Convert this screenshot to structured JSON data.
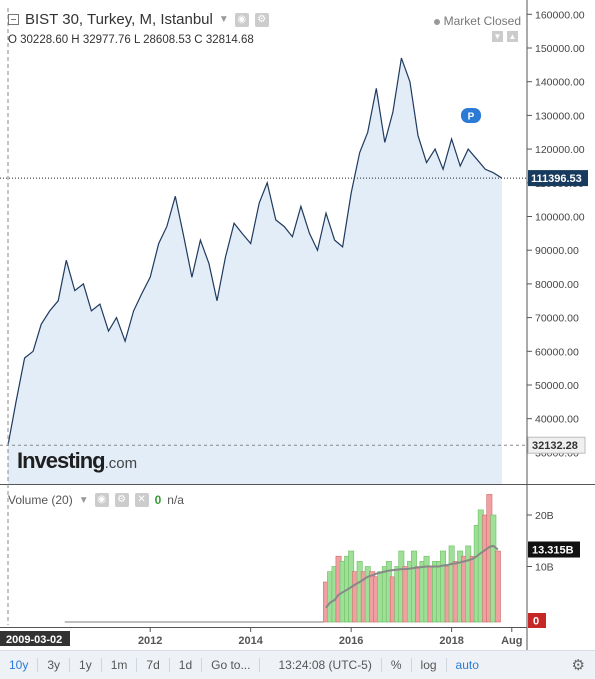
{
  "header": {
    "title": "BIST 30, Turkey, M, Istanbul",
    "market_status": "Market Closed",
    "ohlc": {
      "o": "30228.60",
      "h": "32977.76",
      "l": "28608.53",
      "c": "32814.68"
    }
  },
  "volume_header": {
    "label": "Volume (20)",
    "value": "0",
    "value2": "n/a"
  },
  "logo": {
    "name": "Investing",
    "suffix": ".com"
  },
  "toolbar": {
    "ranges": [
      "10y",
      "3y",
      "1y",
      "1m",
      "7d",
      "1d",
      "Go to..."
    ],
    "active_range": "10y",
    "time": "13:24:08 (UTC-5)",
    "percent": "%",
    "log": "log",
    "auto": "auto"
  },
  "colors": {
    "line": "#1e3a5f",
    "area": "#e3edf8",
    "up": "#9fdf98",
    "down": "#f0a0a0",
    "ma": "#888888",
    "price_tag": "#173a5e",
    "accent": "#2a7ad6"
  },
  "chart_data": [
    {
      "type": "area",
      "title": "BIST 30, Turkey, M, Istanbul",
      "x_ticks": [
        "2009-03-02",
        "2012",
        "2014",
        "2016",
        "2018",
        "Aug"
      ],
      "y_ticks": [
        "30000.00",
        "40000.00",
        "50000.00",
        "60000.00",
        "70000.00",
        "80000.00",
        "90000.00",
        "100000.00",
        "110000.00",
        "120000.00",
        "130000.00",
        "140000.00",
        "150000.00",
        "160000.00"
      ],
      "ylim": [
        30000,
        162000
      ],
      "current_price": "111396.53",
      "min_marker": "32132.28",
      "marker_label": "P",
      "grid": false,
      "x": [
        2009.17,
        2009.33,
        2009.5,
        2009.67,
        2009.83,
        2010.0,
        2010.17,
        2010.33,
        2010.5,
        2010.67,
        2010.83,
        2011.0,
        2011.17,
        2011.33,
        2011.5,
        2011.67,
        2011.83,
        2012.0,
        2012.17,
        2012.33,
        2012.5,
        2012.67,
        2012.83,
        2013.0,
        2013.17,
        2013.33,
        2013.5,
        2013.67,
        2013.83,
        2014.0,
        2014.17,
        2014.33,
        2014.5,
        2014.67,
        2014.83,
        2015.0,
        2015.17,
        2015.33,
        2015.5,
        2015.67,
        2015.83,
        2016.0,
        2016.17,
        2016.33,
        2016.5,
        2016.67,
        2016.83,
        2017.0,
        2017.17,
        2017.33,
        2017.5,
        2017.67,
        2017.83,
        2018.0,
        2018.17,
        2018.33,
        2018.5,
        2018.67,
        2018.83,
        2019.0
      ],
      "y": [
        32132,
        45000,
        58000,
        60000,
        68000,
        72000,
        75000,
        87000,
        78000,
        80000,
        72000,
        74000,
        66000,
        70000,
        63000,
        72000,
        77000,
        82000,
        92000,
        97000,
        106000,
        94000,
        82000,
        93000,
        86000,
        75000,
        88000,
        98000,
        95000,
        92000,
        104000,
        110000,
        99000,
        97000,
        94000,
        103000,
        95000,
        90000,
        101000,
        93000,
        91000,
        107000,
        119000,
        125000,
        138000,
        122000,
        131000,
        147000,
        140000,
        124000,
        116000,
        120000,
        114000,
        123000,
        115000,
        120000,
        117000,
        114000,
        113000,
        111397
      ]
    },
    {
      "type": "bar",
      "title": "Volume (20)",
      "y_ticks": [
        "10B",
        "20B"
      ],
      "ylim": [
        0,
        25
      ],
      "current_value": "13.315B",
      "min_label": "0",
      "x": [
        2015.5,
        2015.58,
        2015.67,
        2015.75,
        2015.83,
        2015.92,
        2016.0,
        2016.08,
        2016.17,
        2016.25,
        2016.33,
        2016.42,
        2016.5,
        2016.58,
        2016.67,
        2016.75,
        2016.83,
        2016.92,
        2017.0,
        2017.08,
        2017.17,
        2017.25,
        2017.33,
        2017.42,
        2017.5,
        2017.58,
        2017.67,
        2017.75,
        2017.83,
        2017.92,
        2018.0,
        2018.08,
        2018.17,
        2018.25,
        2018.33,
        2018.42,
        2018.5,
        2018.58,
        2018.67,
        2018.75,
        2018.83,
        2018.92
      ],
      "values": [
        7,
        9,
        10,
        12,
        11,
        12,
        13,
        9,
        11,
        9,
        10,
        9,
        8,
        9,
        10,
        11,
        8,
        10,
        13,
        10,
        11,
        13,
        10,
        11,
        12,
        10,
        11,
        11,
        13,
        10,
        14,
        11,
        13,
        12,
        14,
        12,
        18,
        21,
        20,
        24,
        20,
        13
      ],
      "up": [
        false,
        true,
        true,
        false,
        true,
        true,
        true,
        false,
        true,
        false,
        true,
        false,
        false,
        true,
        true,
        true,
        false,
        true,
        true,
        false,
        true,
        true,
        false,
        true,
        true,
        false,
        true,
        true,
        true,
        false,
        true,
        false,
        true,
        false,
        true,
        false,
        true,
        true,
        false,
        false,
        true,
        false
      ],
      "ma": [
        2,
        3,
        3.5,
        4.5,
        5,
        5.5,
        6,
        6.5,
        7,
        7.5,
        8,
        8.3,
        8.6,
        8.8,
        9,
        9.2,
        9.3,
        9.4,
        9.5,
        9.5,
        9.6,
        9.7,
        9.8,
        9.9,
        10,
        10,
        10,
        10,
        10.2,
        10.3,
        10.5,
        10.6,
        10.8,
        11,
        11.2,
        11.5,
        12,
        12.6,
        13.2,
        13.8,
        14,
        13.3
      ]
    }
  ]
}
